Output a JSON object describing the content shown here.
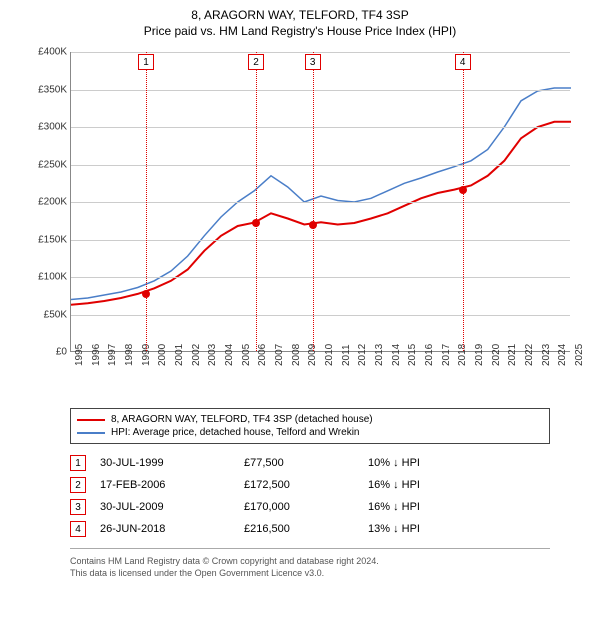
{
  "title_line1": "8, ARAGORN WAY, TELFORD, TF4 3SP",
  "title_line2": "Price paid vs. HM Land Registry's House Price Index (HPI)",
  "chart": {
    "type": "line",
    "background_color": "#ffffff",
    "grid_color": "#cccccc",
    "x_years": [
      1995,
      1996,
      1997,
      1998,
      1999,
      2000,
      2001,
      2002,
      2003,
      2004,
      2005,
      2006,
      2007,
      2008,
      2009,
      2010,
      2011,
      2012,
      2013,
      2014,
      2015,
      2016,
      2017,
      2018,
      2019,
      2020,
      2021,
      2022,
      2023,
      2024,
      2025
    ],
    "ylim": [
      0,
      400000
    ],
    "ytick_step": 50000,
    "ytick_labels": [
      "£0",
      "£50K",
      "£100K",
      "£150K",
      "£200K",
      "£250K",
      "£300K",
      "£350K",
      "£400K"
    ],
    "series": [
      {
        "name": "price_paid",
        "label": "8, ARAGORN WAY, TELFORD, TF4 3SP (detached house)",
        "color": "#e00000",
        "line_width": 2,
        "values": [
          63000,
          65000,
          68000,
          72000,
          77500,
          85000,
          95000,
          110000,
          135000,
          155000,
          168000,
          172500,
          185000,
          178000,
          170000,
          173000,
          170000,
          172000,
          178000,
          185000,
          195000,
          205000,
          212000,
          216500,
          222000,
          235000,
          255000,
          285000,
          300000,
          307000,
          307000
        ]
      },
      {
        "name": "hpi",
        "label": "HPI: Average price, detached house, Telford and Wrekin",
        "color": "#4a7ec8",
        "line_width": 1.5,
        "values": [
          70000,
          72000,
          76000,
          80000,
          86000,
          95000,
          108000,
          128000,
          155000,
          180000,
          200000,
          215000,
          235000,
          220000,
          200000,
          208000,
          202000,
          200000,
          205000,
          215000,
          225000,
          232000,
          240000,
          247000,
          255000,
          270000,
          300000,
          335000,
          348000,
          352000,
          352000
        ]
      }
    ],
    "markers": [
      {
        "n": "1",
        "year": 1999.5,
        "value": 77500
      },
      {
        "n": "2",
        "year": 2006.1,
        "value": 172500
      },
      {
        "n": "3",
        "year": 2009.5,
        "value": 170000
      },
      {
        "n": "4",
        "year": 2018.5,
        "value": 216500
      }
    ],
    "marker_color": "#e00000"
  },
  "legend": {
    "border_color": "#444444",
    "items": [
      {
        "color": "#e00000",
        "label": "8, ARAGORN WAY, TELFORD, TF4 3SP (detached house)"
      },
      {
        "color": "#4a7ec8",
        "label": "HPI: Average price, detached house, Telford and Wrekin"
      }
    ]
  },
  "transactions": [
    {
      "n": "1",
      "date": "30-JUL-1999",
      "price": "£77,500",
      "diff": "10% ↓ HPI"
    },
    {
      "n": "2",
      "date": "17-FEB-2006",
      "price": "£172,500",
      "diff": "16% ↓ HPI"
    },
    {
      "n": "3",
      "date": "30-JUL-2009",
      "price": "£170,000",
      "diff": "16% ↓ HPI"
    },
    {
      "n": "4",
      "date": "26-JUN-2018",
      "price": "£216,500",
      "diff": "13% ↓ HPI"
    }
  ],
  "attribution": {
    "line1": "Contains HM Land Registry data © Crown copyright and database right 2024.",
    "line2": "This data is licensed under the Open Government Licence v3.0."
  }
}
